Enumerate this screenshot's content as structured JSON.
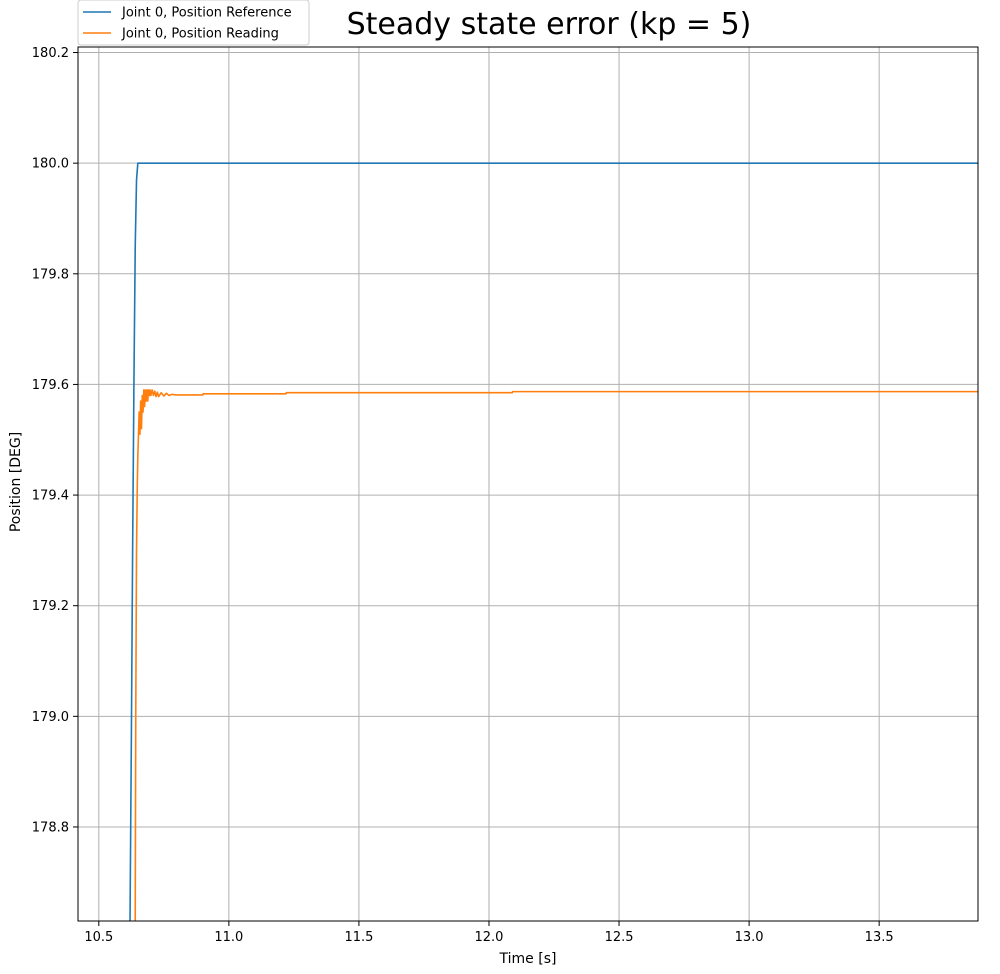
{
  "chart_data": {
    "type": "line",
    "title": "Steady state error (kp = 5)",
    "xlabel": "Time [s]",
    "ylabel": "Position [DEG]",
    "xlim": [
      10.42,
      13.88
    ],
    "ylim": [
      178.63,
      180.21
    ],
    "xticks": [
      10.5,
      11.0,
      11.5,
      12.0,
      12.5,
      13.0,
      13.5
    ],
    "xtick_labels": [
      "10.5",
      "11.0",
      "11.5",
      "12.0",
      "12.5",
      "13.0",
      "13.5"
    ],
    "yticks": [
      178.8,
      179.0,
      179.2,
      179.4,
      179.6,
      179.8,
      180.0,
      180.2
    ],
    "ytick_labels": [
      "178.8",
      "179.0",
      "179.2",
      "179.4",
      "179.6",
      "179.8",
      "180.0",
      "180.2"
    ],
    "grid": true,
    "legend_position": "top-left, outside above axes",
    "series": [
      {
        "name": "Joint 0, Position Reference",
        "color": "#1f77b4",
        "x": [
          10.62,
          10.625,
          10.63,
          10.635,
          10.64,
          10.645,
          10.65,
          10.66,
          11.0,
          12.0,
          13.0,
          13.88
        ],
        "y": [
          178.63,
          178.95,
          179.3,
          179.6,
          179.85,
          179.97,
          180.0,
          180.0,
          180.0,
          180.0,
          180.0,
          180.0
        ]
      },
      {
        "name": "Joint 0, Position Reading",
        "color": "#ff7f0e",
        "x": [
          10.64,
          10.642,
          10.645,
          10.648,
          10.65,
          10.655,
          10.658,
          10.661,
          10.664,
          10.667,
          10.67,
          10.673,
          10.676,
          10.679,
          10.682,
          10.685,
          10.688,
          10.691,
          10.694,
          10.697,
          10.7,
          10.705,
          10.71,
          10.715,
          10.72,
          10.725,
          10.73,
          10.74,
          10.75,
          10.76,
          10.77,
          10.78,
          10.8,
          10.9,
          10.901,
          11.22,
          11.221,
          12.09,
          12.091,
          13.88
        ],
        "y": [
          178.63,
          179.0,
          179.3,
          179.42,
          179.47,
          179.55,
          179.51,
          179.57,
          179.52,
          179.58,
          179.55,
          179.59,
          179.56,
          179.59,
          179.57,
          179.59,
          179.57,
          179.59,
          179.58,
          179.59,
          179.58,
          179.59,
          179.58,
          179.588,
          179.578,
          179.586,
          179.578,
          179.585,
          179.579,
          179.584,
          179.58,
          179.582,
          179.581,
          179.581,
          179.583,
          179.583,
          179.585,
          179.585,
          179.587,
          179.587
        ]
      }
    ]
  }
}
